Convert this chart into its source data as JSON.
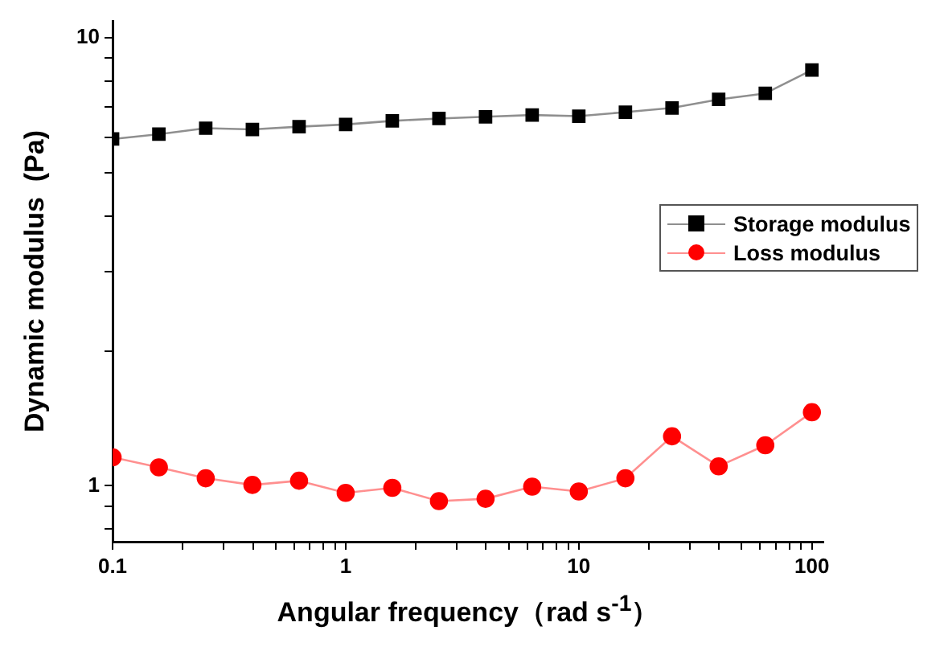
{
  "chart_data": {
    "type": "line",
    "xlabel": "Angular frequency（rad s$^{-1}$）",
    "ylabel": "Dynamic modulus  (Pa)",
    "log": "xy",
    "grid": false,
    "legend": "right",
    "line_style": "solid",
    "x": [
      0.1,
      0.158,
      0.251,
      0.398,
      0.631,
      1,
      1.585,
      2.512,
      3.981,
      6.31,
      10,
      15.85,
      25.12,
      39.81,
      63.1,
      100
    ],
    "xlim": [
      0.1,
      112
    ],
    "ylim": [
      0.75,
      10.9
    ],
    "xticks": [
      0.1,
      {
        "value": 0.2,
        "label": null
      },
      {
        "value": 0.3,
        "label": null
      },
      {
        "value": 0.4,
        "label": null
      },
      {
        "value": 0.5,
        "label": null
      },
      {
        "value": 0.6,
        "label": null
      },
      {
        "value": 0.7,
        "label": null
      },
      {
        "value": 0.8,
        "label": null
      },
      {
        "value": 0.9,
        "label": null
      },
      1,
      {
        "value": 2,
        "label": null
      },
      {
        "value": 3,
        "label": null
      },
      {
        "value": 4,
        "label": null
      },
      {
        "value": 5,
        "label": null
      },
      {
        "value": 6,
        "label": null
      },
      {
        "value": 7,
        "label": null
      },
      {
        "value": 8,
        "label": null
      },
      {
        "value": 9,
        "label": null
      },
      10,
      {
        "value": 20,
        "label": null
      },
      {
        "value": 30,
        "label": null
      },
      {
        "value": 40,
        "label": null
      },
      {
        "value": 50,
        "label": null
      },
      {
        "value": 60,
        "label": null
      },
      {
        "value": 70,
        "label": null
      },
      {
        "value": 80,
        "label": null
      },
      {
        "value": 90,
        "label": null
      },
      100
    ],
    "yticks": [
      {
        "value": 0.8,
        "label": null
      },
      {
        "value": 0.9,
        "label": null
      },
      1,
      {
        "value": 2,
        "label": null
      },
      {
        "value": 3,
        "label": null
      },
      {
        "value": 4,
        "label": null
      },
      {
        "value": 5,
        "label": null
      },
      {
        "value": 6,
        "label": null
      },
      {
        "value": 7,
        "label": null
      },
      {
        "value": 8,
        "label": null
      },
      {
        "value": 9,
        "label": null
      },
      10
    ],
    "series": [
      {
        "name": "Storage modulus",
        "color": "#000000",
        "marker": "square",
        "values": [
          5.94,
          6.09,
          6.28,
          6.24,
          6.33,
          6.4,
          6.52,
          6.6,
          6.66,
          6.72,
          6.68,
          6.82,
          6.97,
          7.28,
          7.51,
          8.47
        ]
      },
      {
        "name": "Loss modulus",
        "color": "#ff0000",
        "marker": "circle",
        "values": [
          1.157,
          1.099,
          1.039,
          1.004,
          1.026,
          0.964,
          0.989,
          0.924,
          0.935,
          0.995,
          0.971,
          1.039,
          1.289,
          1.105,
          1.231,
          1.459
        ]
      }
    ]
  }
}
